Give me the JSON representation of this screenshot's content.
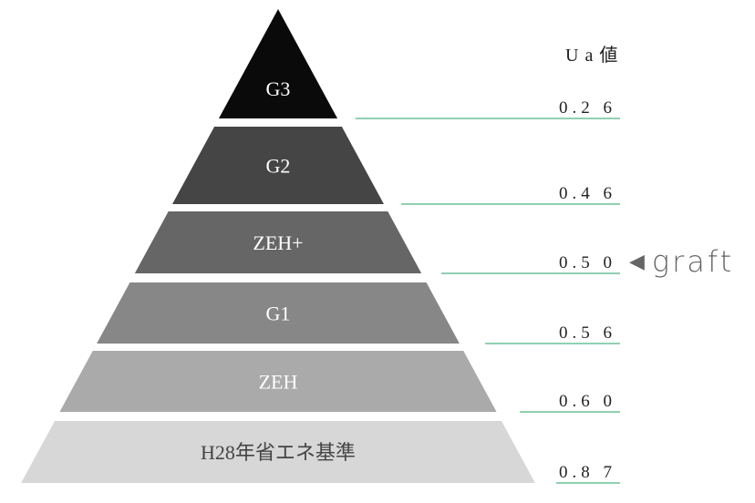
{
  "header": {
    "ua_label": "U a 値"
  },
  "tiers": [
    {
      "label": "G3",
      "ua": "0.2 6",
      "fill": "#0a0a0a",
      "text_color": "#ffffff"
    },
    {
      "label": "G2",
      "ua": "0.4 6",
      "fill": "#454545",
      "text_color": "#ffffff"
    },
    {
      "label": "ZEH+",
      "ua": "0.5 0",
      "fill": "#666666",
      "text_color": "#ffffff"
    },
    {
      "label": "G1",
      "ua": "0.5 6",
      "fill": "#878787",
      "text_color": "#ffffff"
    },
    {
      "label": "ZEH",
      "ua": "0.6 0",
      "fill": "#aaaaaa",
      "text_color": "#ffffff"
    },
    {
      "label": "H28年省エネ基準",
      "ua": "0.8 7",
      "fill": "#d7d7d7",
      "text_color": "#444444"
    }
  ],
  "marker": {
    "label": "graft",
    "tier": "ZEH+",
    "arrow_icon": "left-triangle"
  },
  "colors": {
    "line": "#8fd0b0",
    "marker": "#666666"
  }
}
